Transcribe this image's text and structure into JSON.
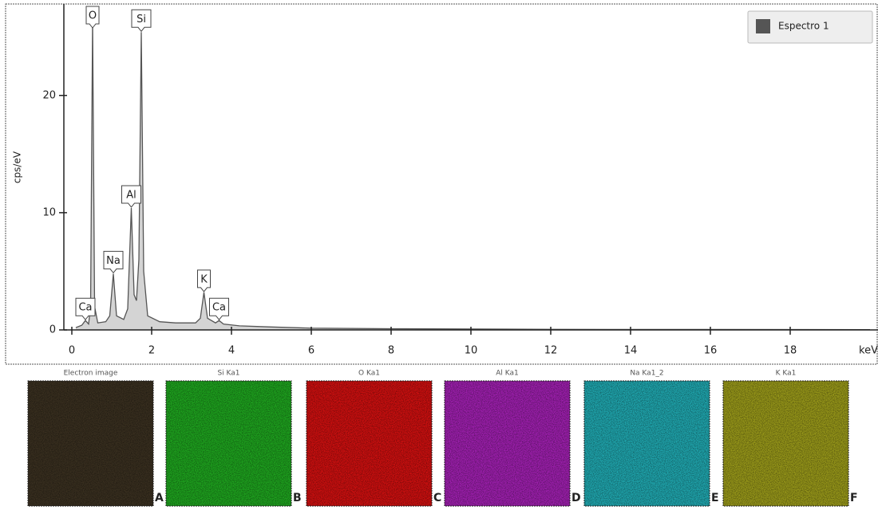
{
  "chart_data": {
    "type": "line",
    "x_label": "keV",
    "y_label": "cps/eV",
    "legend": "Espectro 1",
    "color": "#555555",
    "fill": "#d4d4d4",
    "xlim": [
      0,
      20
    ],
    "xticks": [
      0,
      2,
      4,
      6,
      8,
      10,
      12,
      14,
      16,
      18
    ],
    "ylim": [
      0,
      27.8
    ],
    "yticks": [
      0,
      10,
      20
    ],
    "x": [
      0.1,
      0.25,
      0.34,
      0.42,
      0.47,
      0.52,
      0.57,
      0.65,
      0.85,
      0.95,
      1.04,
      1.12,
      1.3,
      1.4,
      1.49,
      1.56,
      1.62,
      1.68,
      1.74,
      1.8,
      1.9,
      2.2,
      2.6,
      3.1,
      3.22,
      3.31,
      3.4,
      3.6,
      3.69,
      3.8,
      4.2,
      5,
      6,
      8,
      12,
      20
    ],
    "values": [
      0.2,
      0.4,
      0.8,
      0.5,
      2,
      26.5,
      2,
      0.6,
      0.7,
      1.2,
      4.8,
      1.2,
      0.9,
      1.8,
      10.4,
      3,
      2.5,
      6,
      25.4,
      5,
      1.2,
      0.7,
      0.6,
      0.6,
      1,
      3.2,
      1,
      0.6,
      0.8,
      0.5,
      0.35,
      0.25,
      0.15,
      0.1,
      0.05,
      0.03
    ],
    "annotations": [
      {
        "label": "Ca",
        "x": 0.34,
        "y": 0.8
      },
      {
        "label": "O",
        "x": 0.52,
        "y": 26.5
      },
      {
        "label": "Na",
        "x": 1.04,
        "y": 4.8
      },
      {
        "label": "Al",
        "x": 1.49,
        "y": 10.4
      },
      {
        "label": "Si",
        "x": 1.74,
        "y": 25.4
      },
      {
        "label": "K",
        "x": 3.31,
        "y": 3.2
      },
      {
        "label": "Ca",
        "x": 3.69,
        "y": 0.8
      }
    ]
  },
  "maps": [
    {
      "title": "Electron image",
      "letter": "A",
      "color": "#3a3020"
    },
    {
      "title": "Si Ka1",
      "letter": "B",
      "color": "#1fa51f"
    },
    {
      "title": "O Ka1",
      "letter": "C",
      "color": "#d01010"
    },
    {
      "title": "Al Ka1",
      "letter": "D",
      "color": "#a020b0"
    },
    {
      "title": "Na Ka1_2",
      "letter": "E",
      "color": "#20a8b0"
    },
    {
      "title": "K Ka1",
      "letter": "F",
      "color": "#9a9a1a"
    }
  ]
}
